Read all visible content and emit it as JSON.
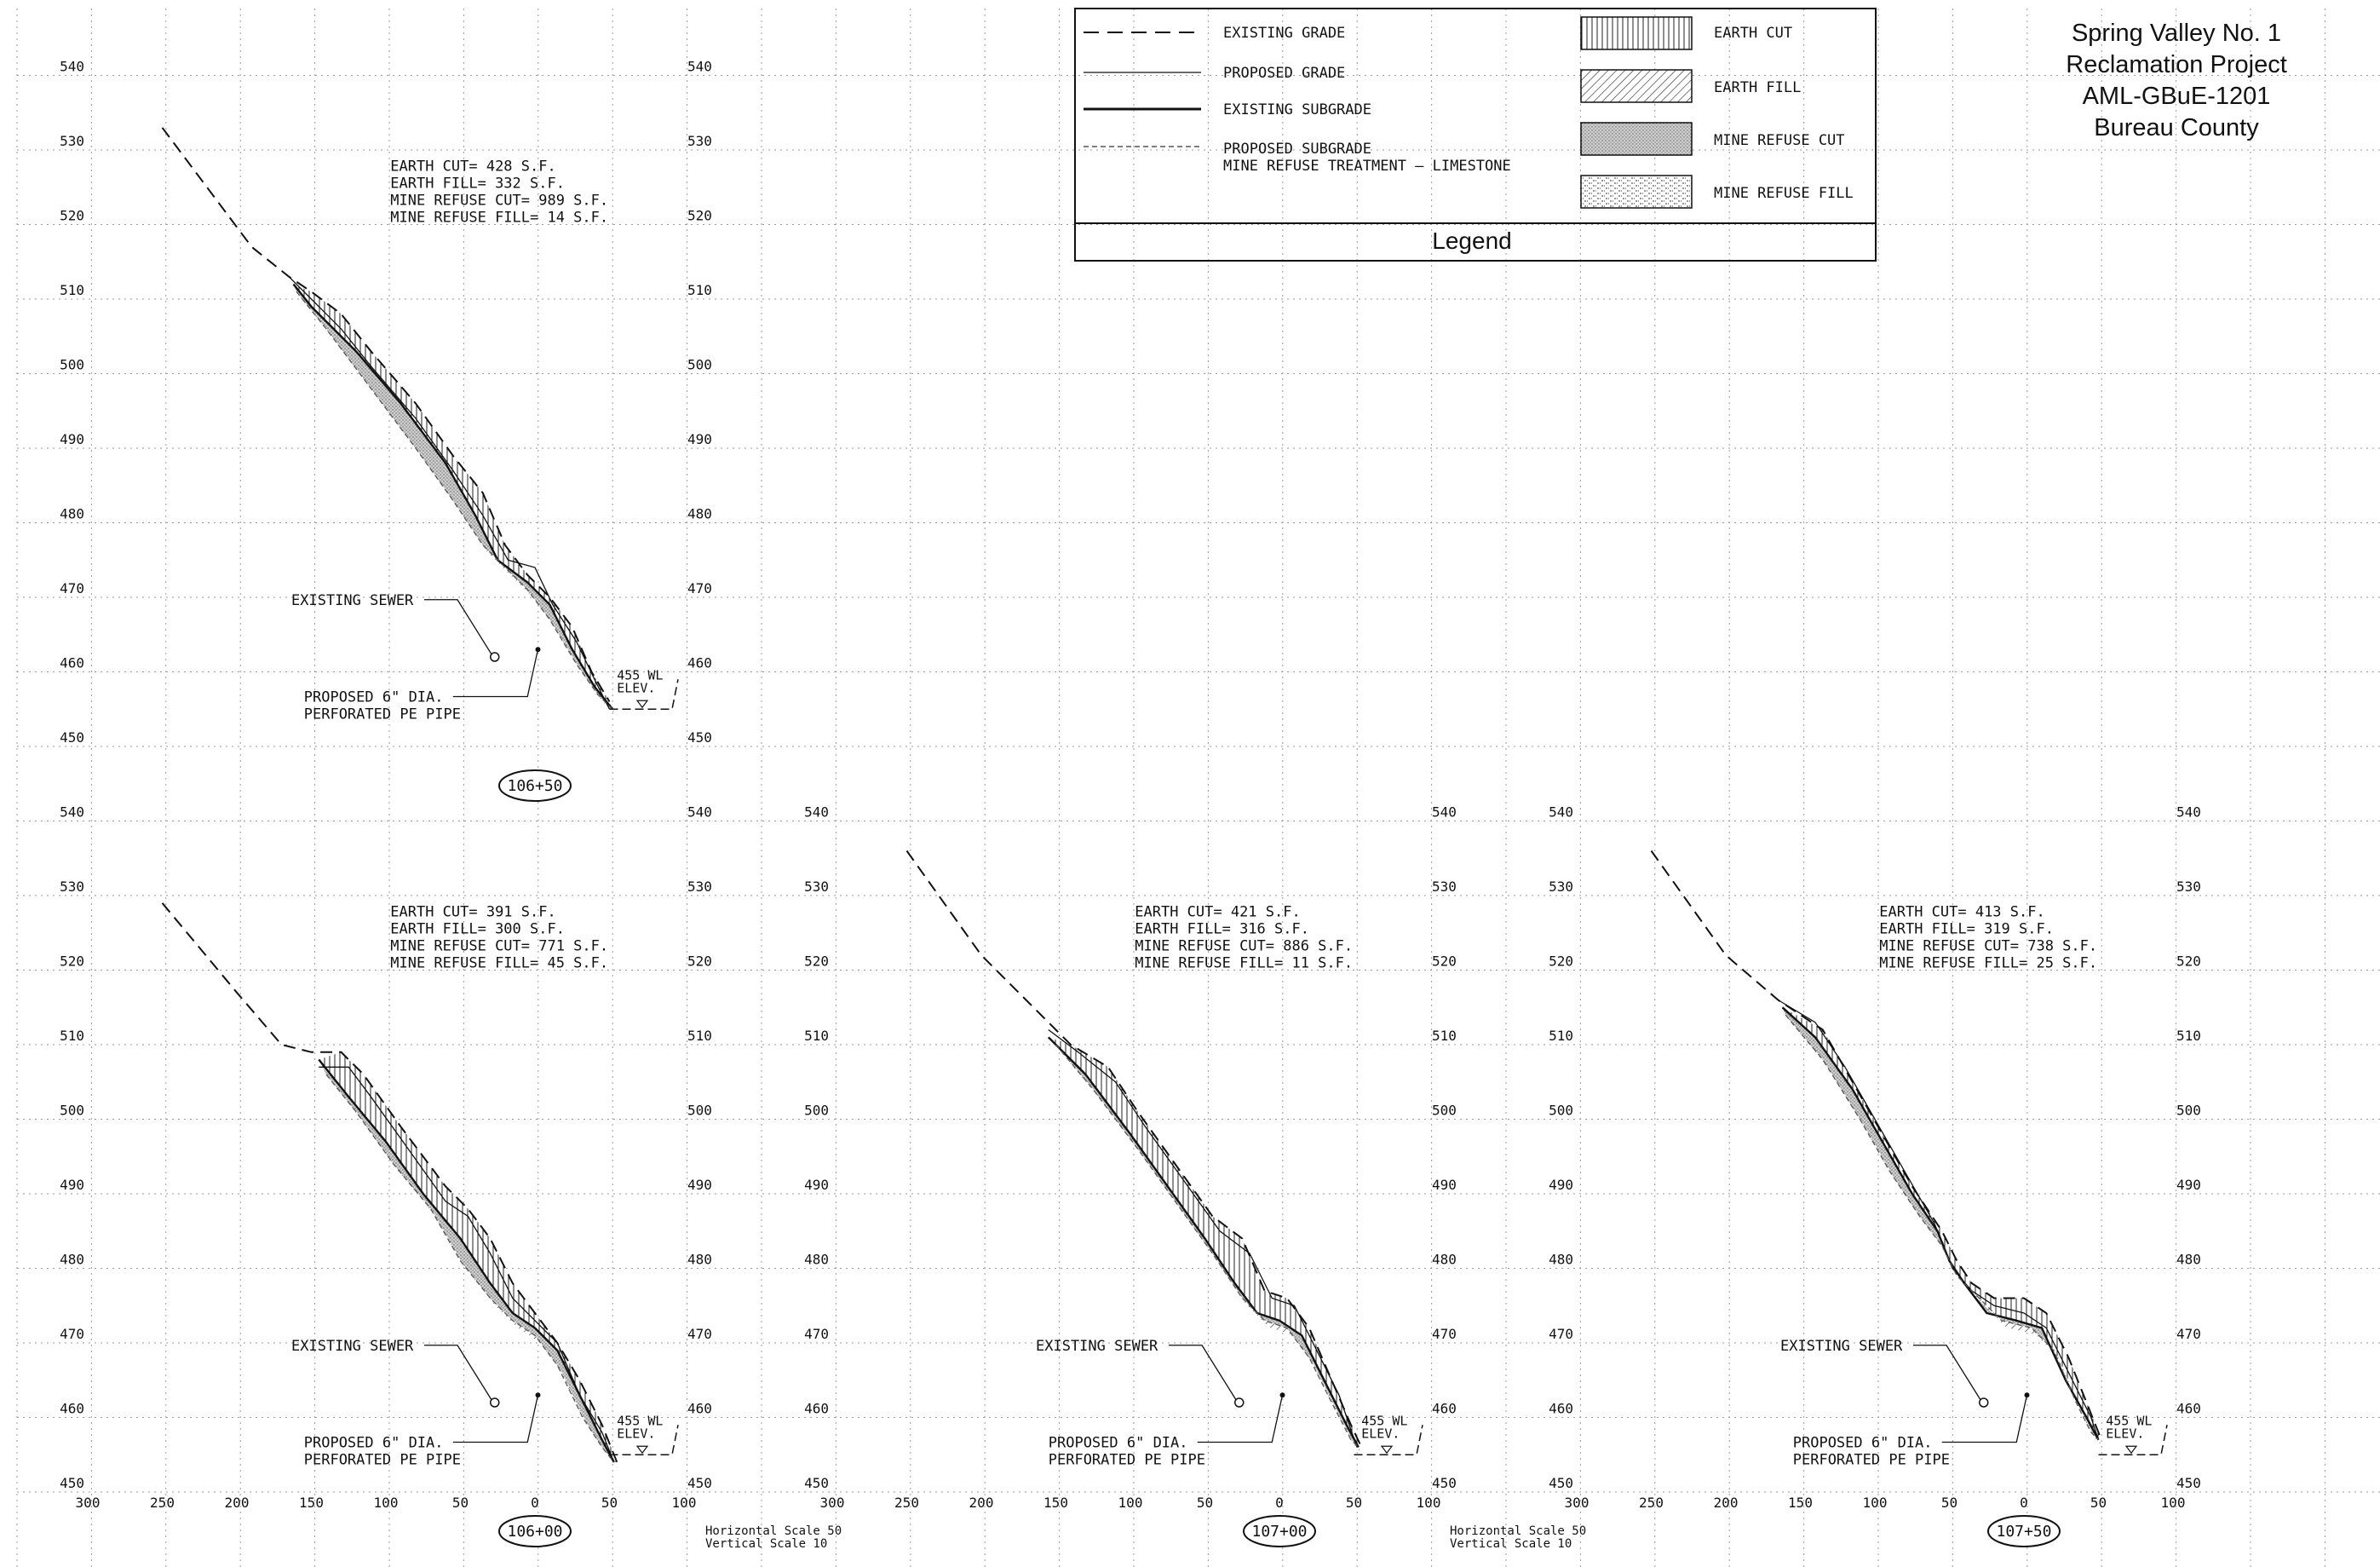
{
  "title_block": {
    "line1": "Spring Valley No. 1",
    "line2": "Reclamation Project",
    "line3": "AML-GBuE-1201",
    "line4": "Bureau County"
  },
  "legend": {
    "heading": "Legend",
    "existing_grade": "EXISTING GRADE",
    "proposed_grade": "PROPOSED GRADE",
    "existing_subgrade": "EXISTING SUBGRADE",
    "proposed_subgrade": "PROPOSED SUBGRADE",
    "treatment_note": "MINE REFUSE TREATMENT – LIMESTONE",
    "earth_cut": "EARTH CUT",
    "earth_fill": "EARTH FILL",
    "mine_refuse_cut": "MINE REFUSE CUT",
    "mine_refuse_fill": "MINE REFUSE FILL"
  },
  "labels": {
    "existing_sewer": "EXISTING SEWER",
    "pipe_line1": "PROPOSED 6\" DIA.",
    "pipe_line2": "PERFORATED PE PIPE",
    "wl_line1": "455 WL",
    "wl_line2": "ELEV.",
    "hscale": "Horizontal Scale 50",
    "vscale": "Vertical Scale 10"
  },
  "elevation_ticks": [
    "540",
    "530",
    "520",
    "510",
    "500",
    "490",
    "480",
    "470",
    "460",
    "450"
  ],
  "offset_ticks": [
    "300",
    "250",
    "200",
    "150",
    "100",
    "50",
    "0",
    "50",
    "100"
  ],
  "sections": [
    {
      "station": "106+50",
      "earth_cut": "EARTH CUT= 428 S.F.",
      "earth_fill": "EARTH FILL= 332 S.F.",
      "mine_refuse_cut": "MINE REFUSE CUT= 989 S.F.",
      "mine_refuse_fill": "MINE REFUSE FILL= 14 S.F.",
      "existing_grade": [
        [
          -250,
          533
        ],
        [
          -190,
          517
        ],
        [
          -165,
          513
        ],
        [
          -150,
          511
        ],
        [
          -130,
          508
        ],
        [
          -110,
          503
        ],
        [
          -80,
          496
        ],
        [
          -55,
          489
        ],
        [
          -35,
          484
        ],
        [
          -20,
          477
        ],
        [
          -5,
          473
        ],
        [
          10,
          470
        ],
        [
          25,
          466
        ],
        [
          38,
          460
        ],
        [
          50,
          456
        ]
      ],
      "proposed_grade": [
        [
          -165,
          513
        ],
        [
          -150,
          510
        ],
        [
          -130,
          506
        ],
        [
          -110,
          501
        ],
        [
          -80,
          494
        ],
        [
          -55,
          487
        ],
        [
          -35,
          481
        ],
        [
          -18,
          475
        ],
        [
          0,
          474
        ],
        [
          12,
          469
        ],
        [
          28,
          464
        ],
        [
          40,
          459
        ],
        [
          50,
          455
        ]
      ],
      "existing_subgrade": [
        [
          -162,
          512
        ],
        [
          -150,
          509
        ],
        [
          -120,
          503
        ],
        [
          -90,
          496
        ],
        [
          -60,
          488
        ],
        [
          -40,
          481
        ],
        [
          -25,
          475
        ],
        [
          -5,
          472
        ],
        [
          10,
          469
        ],
        [
          25,
          463
        ],
        [
          40,
          458
        ],
        [
          52,
          455
        ]
      ],
      "proposed_subgrade": [
        [
          -160,
          511
        ],
        [
          -140,
          506
        ],
        [
          -110,
          498
        ],
        [
          -80,
          490
        ],
        [
          -55,
          483
        ],
        [
          -35,
          477
        ],
        [
          -20,
          474
        ],
        [
          -5,
          471
        ],
        [
          10,
          467
        ],
        [
          28,
          461
        ],
        [
          42,
          457
        ],
        [
          52,
          455
        ]
      ]
    },
    {
      "station": "106+00",
      "earth_cut": "EARTH CUT= 391 S.F.",
      "earth_fill": "EARTH FILL= 300 S.F.",
      "mine_refuse_cut": "MINE REFUSE CUT= 771 S.F.",
      "mine_refuse_fill": "MINE REFUSE FILL= 45 S.F.",
      "existing_grade": [
        [
          -250,
          529
        ],
        [
          -200,
          517
        ],
        [
          -170,
          510
        ],
        [
          -150,
          509
        ],
        [
          -130,
          509
        ],
        [
          -115,
          506
        ],
        [
          -90,
          499
        ],
        [
          -60,
          491
        ],
        [
          -45,
          488
        ],
        [
          -30,
          484
        ],
        [
          -15,
          478
        ],
        [
          0,
          474
        ],
        [
          15,
          470
        ],
        [
          30,
          465
        ],
        [
          45,
          459
        ],
        [
          55,
          454
        ]
      ],
      "proposed_grade": [
        [
          -145,
          507
        ],
        [
          -125,
          507
        ],
        [
          -110,
          503
        ],
        [
          -85,
          496
        ],
        [
          -60,
          489
        ],
        [
          -45,
          487
        ],
        [
          -30,
          482
        ],
        [
          -15,
          476
        ],
        [
          0,
          473
        ],
        [
          15,
          470
        ],
        [
          30,
          463
        ],
        [
          45,
          458
        ],
        [
          53,
          454
        ]
      ],
      "existing_subgrade": [
        [
          -145,
          508
        ],
        [
          -125,
          503
        ],
        [
          -100,
          497
        ],
        [
          -75,
          490
        ],
        [
          -50,
          484
        ],
        [
          -30,
          478
        ],
        [
          -15,
          474
        ],
        [
          0,
          472
        ],
        [
          15,
          469
        ],
        [
          30,
          463
        ],
        [
          45,
          457
        ],
        [
          53,
          454
        ]
      ],
      "proposed_subgrade": [
        [
          -140,
          506
        ],
        [
          -120,
          501
        ],
        [
          -95,
          494
        ],
        [
          -70,
          488
        ],
        [
          -50,
          481
        ],
        [
          -30,
          476
        ],
        [
          -15,
          473
        ],
        [
          0,
          471
        ],
        [
          15,
          467
        ],
        [
          32,
          460
        ],
        [
          45,
          456
        ],
        [
          53,
          454
        ]
      ]
    },
    {
      "station": "107+00",
      "earth_cut": "EARTH CUT= 421 S.F.",
      "earth_fill": "EARTH FILL= 316 S.F.",
      "mine_refuse_cut": "MINE REFUSE CUT= 886 S.F.",
      "mine_refuse_fill": "MINE REFUSE FILL= 11 S.F.",
      "existing_grade": [
        [
          -250,
          536
        ],
        [
          -200,
          522
        ],
        [
          -160,
          514
        ],
        [
          -140,
          510
        ],
        [
          -115,
          507
        ],
        [
          -95,
          501
        ],
        [
          -70,
          494
        ],
        [
          -45,
          487
        ],
        [
          -25,
          484
        ],
        [
          -10,
          477
        ],
        [
          5,
          476
        ],
        [
          20,
          472
        ],
        [
          35,
          465
        ],
        [
          48,
          459
        ],
        [
          55,
          456
        ]
      ],
      "proposed_grade": [
        [
          -155,
          512
        ],
        [
          -135,
          509
        ],
        [
          -110,
          505
        ],
        [
          -90,
          499
        ],
        [
          -65,
          492
        ],
        [
          -40,
          485
        ],
        [
          -20,
          482
        ],
        [
          -5,
          476
        ],
        [
          10,
          475
        ],
        [
          25,
          469
        ],
        [
          40,
          463
        ],
        [
          52,
          456
        ]
      ],
      "existing_subgrade": [
        [
          -155,
          511
        ],
        [
          -130,
          506
        ],
        [
          -100,
          498
        ],
        [
          -75,
          491
        ],
        [
          -50,
          484
        ],
        [
          -30,
          478
        ],
        [
          -15,
          474
        ],
        [
          0,
          473
        ],
        [
          15,
          471
        ],
        [
          30,
          465
        ],
        [
          45,
          459
        ],
        [
          53,
          456
        ]
      ],
      "proposed_subgrade": [
        [
          -150,
          510
        ],
        [
          -125,
          504
        ],
        [
          -95,
          496
        ],
        [
          -70,
          489
        ],
        [
          -45,
          482
        ],
        [
          -25,
          476
        ],
        [
          -10,
          473
        ],
        [
          5,
          472
        ],
        [
          20,
          468
        ],
        [
          35,
          462
        ],
        [
          48,
          457
        ],
        [
          53,
          456
        ]
      ]
    },
    {
      "station": "107+50",
      "earth_cut": "EARTH CUT= 413 S.F.",
      "earth_fill": "EARTH FILL= 319 S.F.",
      "mine_refuse_cut": "MINE REFUSE CUT= 738 S.F.",
      "mine_refuse_fill": "MINE REFUSE FILL= 25 S.F.",
      "existing_grade": [
        [
          -250,
          536
        ],
        [
          -200,
          522
        ],
        [
          -165,
          516
        ],
        [
          -135,
          512
        ],
        [
          -115,
          505
        ],
        [
          -95,
          498
        ],
        [
          -75,
          491
        ],
        [
          -55,
          485
        ],
        [
          -45,
          481
        ],
        [
          -35,
          478
        ],
        [
          -20,
          476
        ],
        [
          0,
          476
        ],
        [
          15,
          474
        ],
        [
          30,
          468
        ],
        [
          42,
          462
        ],
        [
          52,
          457
        ]
      ],
      "proposed_grade": [
        [
          -165,
          516
        ],
        [
          -140,
          513
        ],
        [
          -120,
          507
        ],
        [
          -100,
          500
        ],
        [
          -80,
          493
        ],
        [
          -60,
          486
        ],
        [
          -48,
          480
        ],
        [
          -35,
          477
        ],
        [
          -20,
          475
        ],
        [
          0,
          474
        ],
        [
          15,
          472
        ],
        [
          30,
          466
        ],
        [
          45,
          460
        ],
        [
          50,
          457
        ]
      ],
      "existing_subgrade": [
        [
          -162,
          515
        ],
        [
          -140,
          511
        ],
        [
          -115,
          504
        ],
        [
          -95,
          497
        ],
        [
          -75,
          490
        ],
        [
          -58,
          485
        ],
        [
          -50,
          481
        ],
        [
          -40,
          478
        ],
        [
          -25,
          474
        ],
        [
          -5,
          473
        ],
        [
          12,
          472
        ],
        [
          28,
          465
        ],
        [
          42,
          460
        ],
        [
          50,
          457
        ]
      ],
      "proposed_subgrade": [
        [
          -160,
          514
        ],
        [
          -135,
          508
        ],
        [
          -110,
          500
        ],
        [
          -90,
          493
        ],
        [
          -70,
          487
        ],
        [
          -55,
          483
        ],
        [
          -45,
          479
        ],
        [
          -30,
          476
        ],
        [
          -15,
          473
        ],
        [
          5,
          472
        ],
        [
          20,
          469
        ],
        [
          35,
          462
        ],
        [
          45,
          458
        ],
        [
          50,
          457
        ]
      ]
    }
  ]
}
